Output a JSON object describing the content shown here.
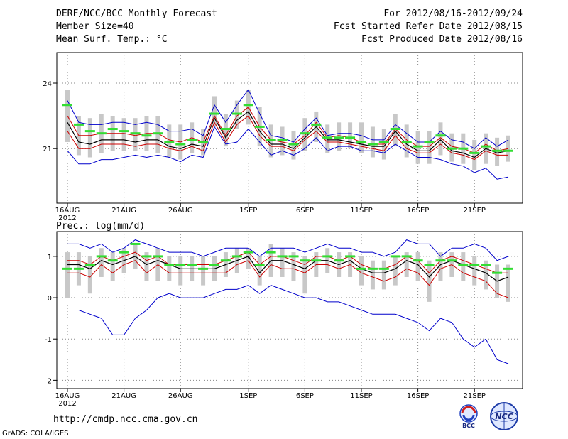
{
  "header": {
    "left": [
      "DERF/NCC/BCC Monthly Forecast",
      "Member Size=40",
      "Mean Surf. Temp.: °C"
    ],
    "right": [
      "For 2012/08/16-2012/09/24",
      "Fcst Started Refer Date 2012/08/15",
      "Fcst Produced Date 2012/08/16"
    ]
  },
  "precip_title": "Prec.: log(mm/d)",
  "footer_url": "http://cmdp.ncc.cma.gov.cn",
  "credit": "GrADS: COLA/IGES",
  "logos": {
    "bcc": "BCC",
    "ncc": "NCC"
  },
  "colors": {
    "envelope": "#0000cc",
    "spread": "#cc0000",
    "mean": "#000000",
    "obs": "#33dd33",
    "box": "#c8c8c8",
    "grid": "#888888"
  },
  "chart_data": [
    {
      "type": "line",
      "title": "Mean Surf. Temp.: °C",
      "ylabel": "°C",
      "ylim": [
        18.5,
        25.4
      ],
      "yticks": [
        21,
        24
      ],
      "xticks": [
        {
          "day": 0,
          "label": "16AUG",
          "sub": "2012"
        },
        {
          "day": 5,
          "label": "21AUG"
        },
        {
          "day": 10,
          "label": "26AUG"
        },
        {
          "day": 16,
          "label": "1SEP"
        },
        {
          "day": 21,
          "label": "6SEP"
        },
        {
          "day": 26,
          "label": "11SEP"
        },
        {
          "day": 31,
          "label": "16SEP"
        },
        {
          "day": 36,
          "label": "21SEP"
        }
      ],
      "n_days": 40,
      "series": [
        {
          "name": "max",
          "values": [
            23.2,
            22.2,
            22.1,
            22.1,
            22.2,
            22.2,
            22.1,
            22.2,
            22.1,
            21.8,
            21.8,
            21.9,
            21.6,
            23.0,
            22.2,
            23.0,
            23.7,
            22.6,
            21.6,
            21.5,
            21.3,
            21.9,
            22.4,
            21.6,
            21.7,
            21.7,
            21.6,
            21.4,
            21.4,
            22.1,
            21.7,
            21.3,
            21.3,
            21.8,
            21.4,
            21.3,
            21.0,
            21.5,
            21.1,
            21.4
          ]
        },
        {
          "name": "upper",
          "values": [
            22.5,
            21.6,
            21.6,
            21.7,
            21.7,
            21.7,
            21.6,
            21.7,
            21.7,
            21.4,
            21.3,
            21.5,
            21.3,
            22.5,
            21.6,
            22.5,
            22.9,
            22.0,
            21.4,
            21.3,
            21.2,
            21.6,
            22.2,
            21.5,
            21.6,
            21.5,
            21.3,
            21.2,
            21.2,
            21.9,
            21.4,
            21.1,
            21.1,
            21.5,
            21.1,
            21.0,
            20.8,
            21.2,
            20.9,
            21.0
          ]
        },
        {
          "name": "mean",
          "values": [
            22.2,
            21.3,
            21.2,
            21.4,
            21.4,
            21.4,
            21.3,
            21.4,
            21.4,
            21.1,
            21.0,
            21.2,
            21.1,
            22.4,
            21.5,
            22.3,
            22.7,
            21.8,
            21.2,
            21.2,
            21.0,
            21.5,
            22.0,
            21.4,
            21.4,
            21.3,
            21.2,
            21.1,
            21.1,
            21.8,
            21.2,
            20.9,
            20.9,
            21.4,
            20.9,
            20.8,
            20.6,
            21.0,
            20.8,
            20.9
          ]
        },
        {
          "name": "lower",
          "values": [
            21.8,
            21.0,
            21.0,
            21.2,
            21.2,
            21.2,
            21.1,
            21.2,
            21.2,
            21.0,
            20.9,
            21.1,
            20.9,
            22.2,
            21.3,
            22.1,
            22.5,
            21.6,
            21.1,
            21.1,
            20.9,
            21.4,
            21.8,
            21.3,
            21.3,
            21.2,
            21.1,
            21.0,
            20.9,
            21.6,
            21.0,
            20.8,
            20.8,
            21.2,
            20.8,
            20.7,
            20.5,
            20.9,
            20.7,
            20.7
          ]
        },
        {
          "name": "min",
          "values": [
            20.9,
            20.3,
            20.3,
            20.5,
            20.5,
            20.6,
            20.7,
            20.6,
            20.7,
            20.6,
            20.4,
            20.7,
            20.6,
            22.0,
            21.2,
            21.3,
            21.9,
            21.3,
            20.7,
            20.9,
            20.7,
            21.0,
            21.5,
            20.9,
            21.1,
            21.1,
            20.9,
            20.9,
            20.8,
            21.2,
            20.9,
            20.6,
            20.6,
            20.5,
            20.3,
            20.2,
            19.9,
            20.1,
            19.6,
            19.7
          ]
        },
        {
          "name": "observed",
          "values": [
            23.0,
            22.1,
            21.8,
            21.7,
            21.9,
            21.8,
            21.7,
            21.6,
            21.7,
            21.3,
            21.2,
            21.4,
            21.3,
            22.6,
            21.9,
            22.6,
            23.0,
            22.0,
            21.4,
            21.4,
            21.2,
            21.7,
            22.1,
            21.5,
            21.5,
            21.5,
            21.3,
            21.2,
            21.3,
            21.9,
            21.3,
            21.1,
            21.3,
            21.6,
            21.0,
            21.0,
            20.8,
            21.1,
            20.9,
            20.9
          ]
        },
        {
          "name": "box_high",
          "values": [
            23.7,
            22.5,
            22.4,
            22.6,
            22.5,
            22.4,
            22.4,
            22.5,
            22.5,
            22.1,
            22.1,
            22.2,
            21.9,
            23.4,
            22.6,
            23.2,
            23.7,
            22.9,
            22.1,
            22.0,
            21.8,
            22.4,
            22.7,
            22.1,
            22.2,
            22.2,
            22.2,
            22.0,
            21.9,
            22.6,
            22.1,
            21.8,
            21.8,
            22.2,
            21.7,
            21.7,
            21.4,
            21.7,
            21.5,
            21.6
          ]
        },
        {
          "name": "box_low",
          "values": [
            21.3,
            20.7,
            20.6,
            20.8,
            20.9,
            20.9,
            20.9,
            20.9,
            20.8,
            20.6,
            20.5,
            20.8,
            20.7,
            22.0,
            21.1,
            21.9,
            22.1,
            21.1,
            20.6,
            20.7,
            20.5,
            20.9,
            21.3,
            20.8,
            20.9,
            21.0,
            20.8,
            20.6,
            20.5,
            21.1,
            20.6,
            20.3,
            20.3,
            20.7,
            20.4,
            20.3,
            20.0,
            20.3,
            20.2,
            20.4
          ]
        }
      ]
    },
    {
      "type": "line",
      "title": "Prec.: log(mm/d)",
      "ylabel": "log(mm/d)",
      "ylim": [
        -2.2,
        1.6
      ],
      "yticks": [
        -2,
        -1,
        0,
        1
      ],
      "xticks": [
        {
          "day": 0,
          "label": "16AUG",
          "sub": "2012"
        },
        {
          "day": 5,
          "label": "21AUG"
        },
        {
          "day": 10,
          "label": "26AUG"
        },
        {
          "day": 16,
          "label": "1SEP"
        },
        {
          "day": 21,
          "label": "6SEP"
        },
        {
          "day": 26,
          "label": "11SEP"
        },
        {
          "day": 31,
          "label": "16SEP"
        },
        {
          "day": 36,
          "label": "21SEP"
        }
      ],
      "n_days": 40,
      "series": [
        {
          "name": "max",
          "values": [
            1.3,
            1.3,
            1.2,
            1.3,
            1.1,
            1.2,
            1.4,
            1.3,
            1.2,
            1.1,
            1.1,
            1.1,
            1.0,
            1.1,
            1.2,
            1.2,
            1.2,
            1.0,
            1.2,
            1.2,
            1.2,
            1.1,
            1.2,
            1.3,
            1.2,
            1.2,
            1.1,
            1.1,
            1.0,
            1.1,
            1.4,
            1.3,
            1.3,
            1.0,
            1.2,
            1.2,
            1.3,
            1.2,
            0.9,
            1.0
          ]
        },
        {
          "name": "upper",
          "values": [
            0.9,
            0.9,
            0.8,
            1.0,
            0.9,
            1.0,
            1.1,
            0.9,
            1.0,
            0.8,
            0.8,
            0.8,
            0.8,
            0.8,
            0.9,
            1.0,
            1.1,
            0.8,
            1.0,
            1.0,
            0.9,
            0.8,
            1.0,
            1.0,
            0.9,
            1.0,
            0.8,
            0.7,
            0.7,
            0.8,
            1.0,
            0.9,
            0.6,
            0.9,
            1.0,
            0.9,
            0.8,
            0.7,
            0.6,
            0.6
          ]
        },
        {
          "name": "mean",
          "values": [
            0.8,
            0.8,
            0.7,
            0.9,
            0.8,
            0.9,
            1.0,
            0.8,
            0.9,
            0.8,
            0.7,
            0.7,
            0.7,
            0.7,
            0.8,
            0.9,
            1.0,
            0.6,
            0.9,
            0.9,
            0.8,
            0.7,
            0.9,
            0.9,
            0.8,
            0.9,
            0.7,
            0.6,
            0.6,
            0.7,
            0.9,
            0.8,
            0.5,
            0.8,
            0.9,
            0.8,
            0.7,
            0.6,
            0.4,
            0.5
          ]
        },
        {
          "name": "lower",
          "values": [
            0.6,
            0.6,
            0.5,
            0.8,
            0.6,
            0.8,
            0.9,
            0.6,
            0.8,
            0.6,
            0.6,
            0.6,
            0.6,
            0.6,
            0.6,
            0.8,
            0.9,
            0.5,
            0.8,
            0.7,
            0.7,
            0.6,
            0.8,
            0.8,
            0.7,
            0.8,
            0.6,
            0.5,
            0.4,
            0.5,
            0.7,
            0.6,
            0.3,
            0.7,
            0.8,
            0.6,
            0.5,
            0.4,
            0.1,
            0.0
          ]
        },
        {
          "name": "min",
          "values": [
            -0.3,
            -0.3,
            -0.4,
            -0.5,
            -0.9,
            -0.9,
            -0.5,
            -0.3,
            0.0,
            0.1,
            0.0,
            0.0,
            0.0,
            0.1,
            0.2,
            0.2,
            0.3,
            0.1,
            0.3,
            0.2,
            0.1,
            0.0,
            0.0,
            -0.1,
            -0.1,
            -0.2,
            -0.3,
            -0.4,
            -0.4,
            -0.4,
            -0.5,
            -0.6,
            -0.8,
            -0.5,
            -0.6,
            -1.0,
            -1.2,
            -1.0,
            -1.5,
            -1.6
          ]
        },
        {
          "name": "observed",
          "values": [
            0.7,
            0.7,
            0.8,
            1.0,
            0.9,
            1.1,
            1.3,
            1.0,
            1.0,
            0.8,
            0.8,
            0.8,
            0.7,
            0.8,
            0.9,
            1.0,
            1.1,
            0.8,
            1.1,
            1.0,
            1.0,
            0.9,
            0.9,
            1.0,
            0.9,
            1.0,
            0.7,
            0.7,
            0.7,
            1.0,
            1.0,
            0.9,
            0.8,
            0.9,
            0.9,
            0.8,
            0.8,
            0.8,
            0.6,
            0.7
          ]
        },
        {
          "name": "box_high",
          "values": [
            1.1,
            1.1,
            1.0,
            1.2,
            1.1,
            1.2,
            1.3,
            1.1,
            1.2,
            1.0,
            1.0,
            1.0,
            1.0,
            1.0,
            1.1,
            1.2,
            1.2,
            1.0,
            1.3,
            1.2,
            1.1,
            1.0,
            1.1,
            1.2,
            1.1,
            1.1,
            1.0,
            0.9,
            0.9,
            1.0,
            1.1,
            1.1,
            0.9,
            1.1,
            1.1,
            1.1,
            1.0,
            0.9,
            0.8,
            0.8
          ]
        },
        {
          "name": "box_low",
          "values": [
            0.0,
            0.3,
            0.1,
            0.5,
            0.4,
            0.6,
            0.7,
            0.4,
            0.4,
            0.4,
            0.3,
            0.4,
            0.3,
            0.4,
            0.5,
            0.6,
            0.7,
            0.3,
            0.5,
            0.5,
            0.4,
            0.1,
            0.5,
            0.6,
            0.5,
            0.5,
            0.3,
            0.2,
            0.2,
            0.3,
            0.5,
            0.4,
            -0.1,
            0.4,
            0.5,
            0.4,
            0.3,
            0.2,
            0.0,
            -0.1
          ]
        }
      ]
    }
  ]
}
